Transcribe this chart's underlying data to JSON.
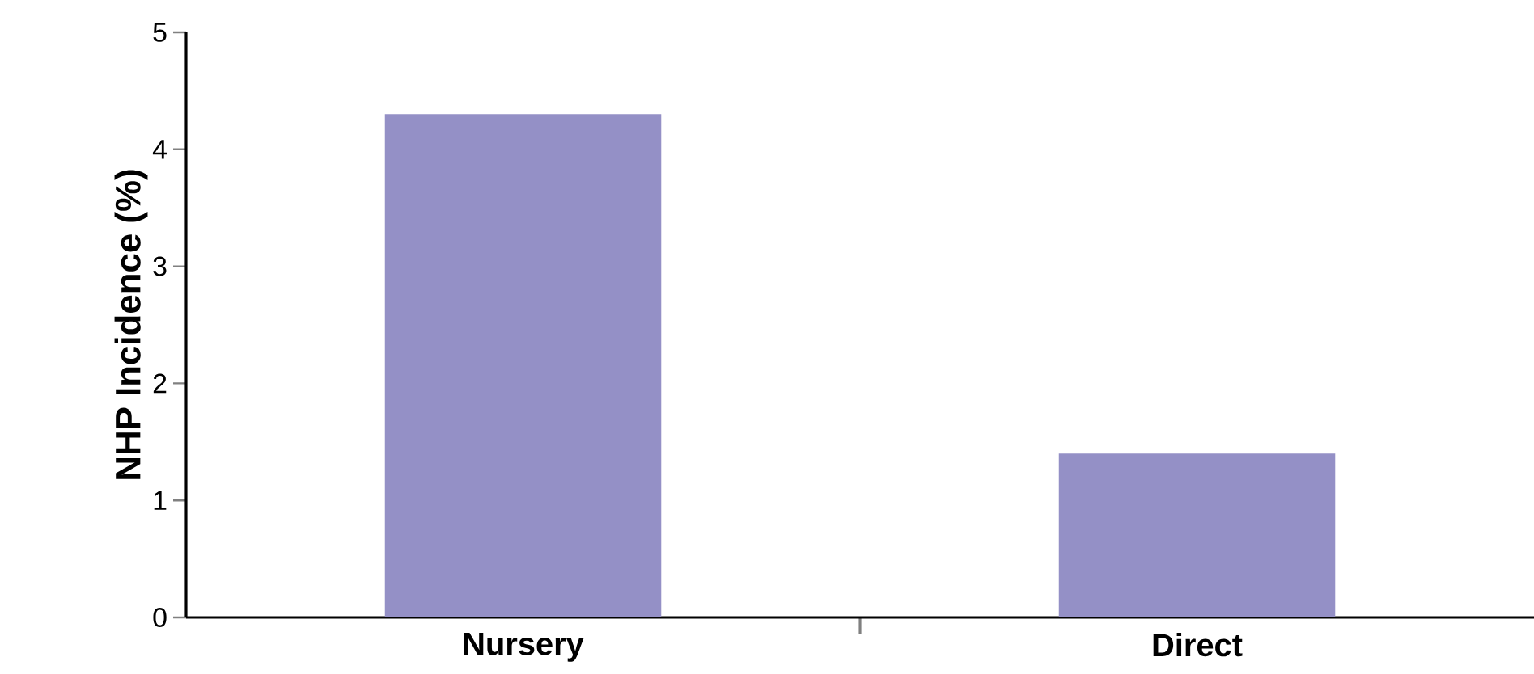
{
  "chart_data": {
    "type": "bar",
    "ylabel": "NHP Incidence (%)",
    "categories": [
      "Nursery",
      "Direct"
    ],
    "values": [
      4.3,
      1.4
    ],
    "color": "#9490c6",
    "ylim": [
      0,
      5
    ],
    "yticks": [
      0,
      1,
      2,
      3,
      4,
      5
    ],
    "grid": false
  }
}
